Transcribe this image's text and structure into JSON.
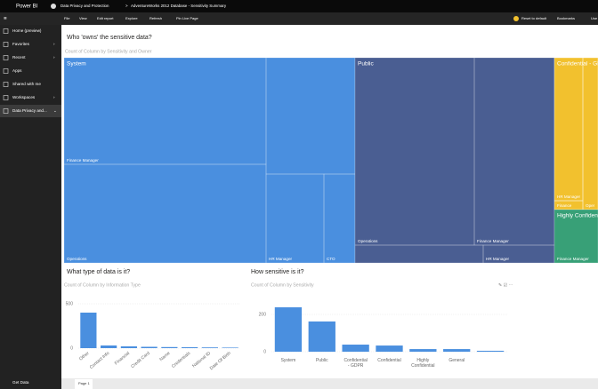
{
  "app": "Power BI",
  "breadcrumb": {
    "workspace": "Data Privacy and Protection",
    "report": "AdventureWorks 2012 Database - Sensitivity Summary"
  },
  "toolbar": {
    "left": [
      "File",
      "View",
      "Edit report",
      "Explore",
      "Refresh",
      "Pin Live Page"
    ],
    "right": [
      "Reset to default",
      "Bookmarks",
      "Use"
    ]
  },
  "nav": {
    "items": [
      "Home (preview)",
      "Favorites",
      "Recent",
      "Apps",
      "Shared with me",
      "Workspaces",
      "Data Privacy and..."
    ],
    "footer": "Get Data"
  },
  "pages": [
    "Page 1"
  ],
  "treemap": {
    "title": "Who 'owns' the sensitive data?",
    "subtitle": "Count of Column by Sensitivity and Owner",
    "groups": [
      {
        "name": "System",
        "color": "#4a8fdf",
        "children": [
          "Finance Manager",
          "Operations",
          "HR Manager",
          "CTO"
        ]
      },
      {
        "name": "Public",
        "color": "#4a5e92",
        "children": [
          "Operations",
          "Finance Manager",
          "HR Manager"
        ]
      },
      {
        "name": "Confidential - GDPR",
        "color": "#f2c12e",
        "children": [
          "HR Manager",
          "Finance",
          "Oper"
        ]
      },
      {
        "name": "Highly Confidential",
        "color": "#38a077",
        "children": [
          "Finance Manager"
        ]
      }
    ]
  },
  "charts": [
    {
      "type": "bar",
      "title": "What type of data is it?",
      "subtitle": "Count of Column by Information Type",
      "categories": [
        "Other",
        "Contact Info",
        "Financial",
        "Credit Card",
        "Name",
        "Credentials",
        "National ID",
        "Date Of Birth"
      ],
      "values": [
        400,
        30,
        20,
        15,
        12,
        10,
        8,
        6
      ],
      "color": "#4a8fdf",
      "ylim": [
        0,
        550
      ],
      "yticks": [
        0,
        500
      ],
      "label_rotation": -40
    },
    {
      "type": "bar",
      "title": "How sensitive is it?",
      "subtitle": "Count of Column by Sensitivity",
      "categories": [
        "System",
        "Public",
        "Confidential - GDPR",
        "Confidential",
        "Highly Confidential",
        "General",
        null
      ],
      "values": [
        238,
        162,
        38,
        33,
        14,
        14,
        5
      ],
      "color": "#4a8fdf",
      "ylim": [
        0,
        250
      ],
      "yticks": [
        0,
        200
      ],
      "label_rotation": 0
    }
  ]
}
